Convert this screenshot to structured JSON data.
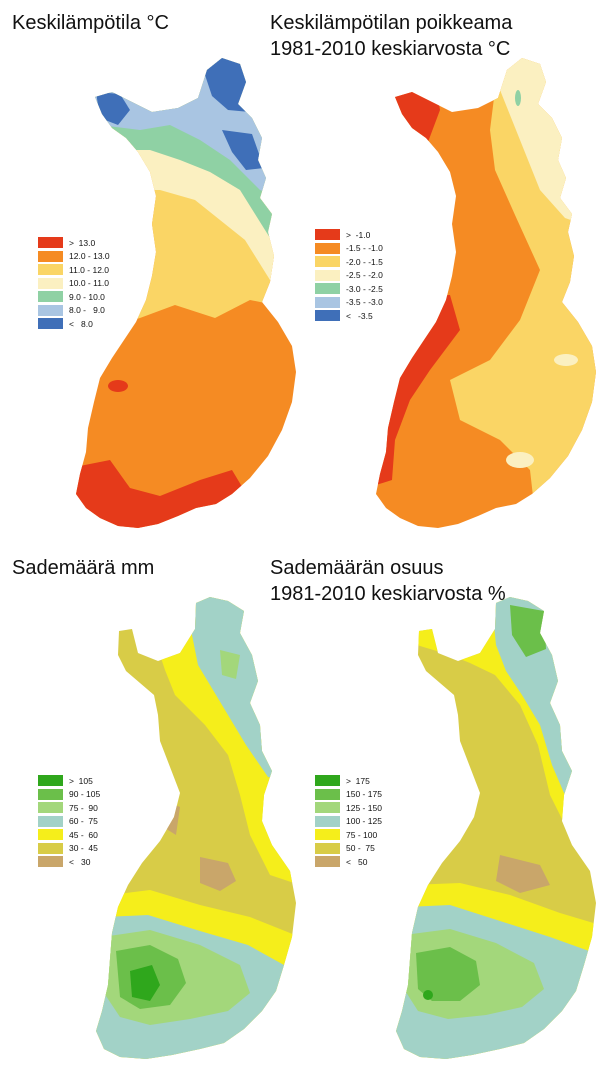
{
  "panels": [
    {
      "title_lines": [
        "Keskilämpötila °C"
      ],
      "legend": [
        {
          "label": ">  13.0",
          "color": "#e53a1a"
        },
        {
          "label": "12.0 - 13.0",
          "color": "#f58b23"
        },
        {
          "label": "11.0 - 12.0",
          "color": "#fad565"
        },
        {
          "label": "10.0 - 11.0",
          "color": "#fbf0c1"
        },
        {
          "label": "9.0 - 10.0",
          "color": "#8fd1a4"
        },
        {
          "label": "8.0 -   9.0",
          "color": "#a9c5e2"
        },
        {
          "label": "<   8.0",
          "color": "#3f6fb8"
        }
      ]
    },
    {
      "title_lines": [
        "Keskilämpötilan poikkeama",
        "1981-2010 keskiarvosta °C"
      ],
      "legend": [
        {
          "label": ">  -1.0",
          "color": "#e53a1a"
        },
        {
          "label": "-1.5 - -1.0",
          "color": "#f58b23"
        },
        {
          "label": "-2.0 - -1.5",
          "color": "#fad565"
        },
        {
          "label": "-2.5 - -2.0",
          "color": "#fbf0c1"
        },
        {
          "label": "-3.0 - -2.5",
          "color": "#8fd1a4"
        },
        {
          "label": "-3.5 - -3.0",
          "color": "#a9c5e2"
        },
        {
          "label": "<   -3.5",
          "color": "#3f6fb8"
        }
      ]
    },
    {
      "title_lines": [
        "Sademäärä mm"
      ],
      "legend": [
        {
          "label": ">  105",
          "color": "#2fa71c"
        },
        {
          "label": "90 - 105",
          "color": "#6bbf4a"
        },
        {
          "label": "75 -  90",
          "color": "#a3d77b"
        },
        {
          "label": "60 -  75",
          "color": "#a2d2c7"
        },
        {
          "label": "45 -  60",
          "color": "#f5ee1b"
        },
        {
          "label": "30 -  45",
          "color": "#d8cc47"
        },
        {
          "label": "<   30",
          "color": "#c9a66a"
        }
      ]
    },
    {
      "title_lines": [
        "Sademäärän osuus",
        "1981-2010 keskiarvosta %"
      ],
      "legend": [
        {
          "label": ">  175",
          "color": "#2fa71c"
        },
        {
          "label": "150 - 175",
          "color": "#6bbf4a"
        },
        {
          "label": "125 - 150",
          "color": "#a3d77b"
        },
        {
          "label": "100 - 125",
          "color": "#a2d2c7"
        },
        {
          "label": "75 - 100",
          "color": "#f5ee1b"
        },
        {
          "label": "50 -  75",
          "color": "#d8cc47"
        },
        {
          "label": "<   50",
          "color": "#c9a66a"
        }
      ]
    }
  ]
}
